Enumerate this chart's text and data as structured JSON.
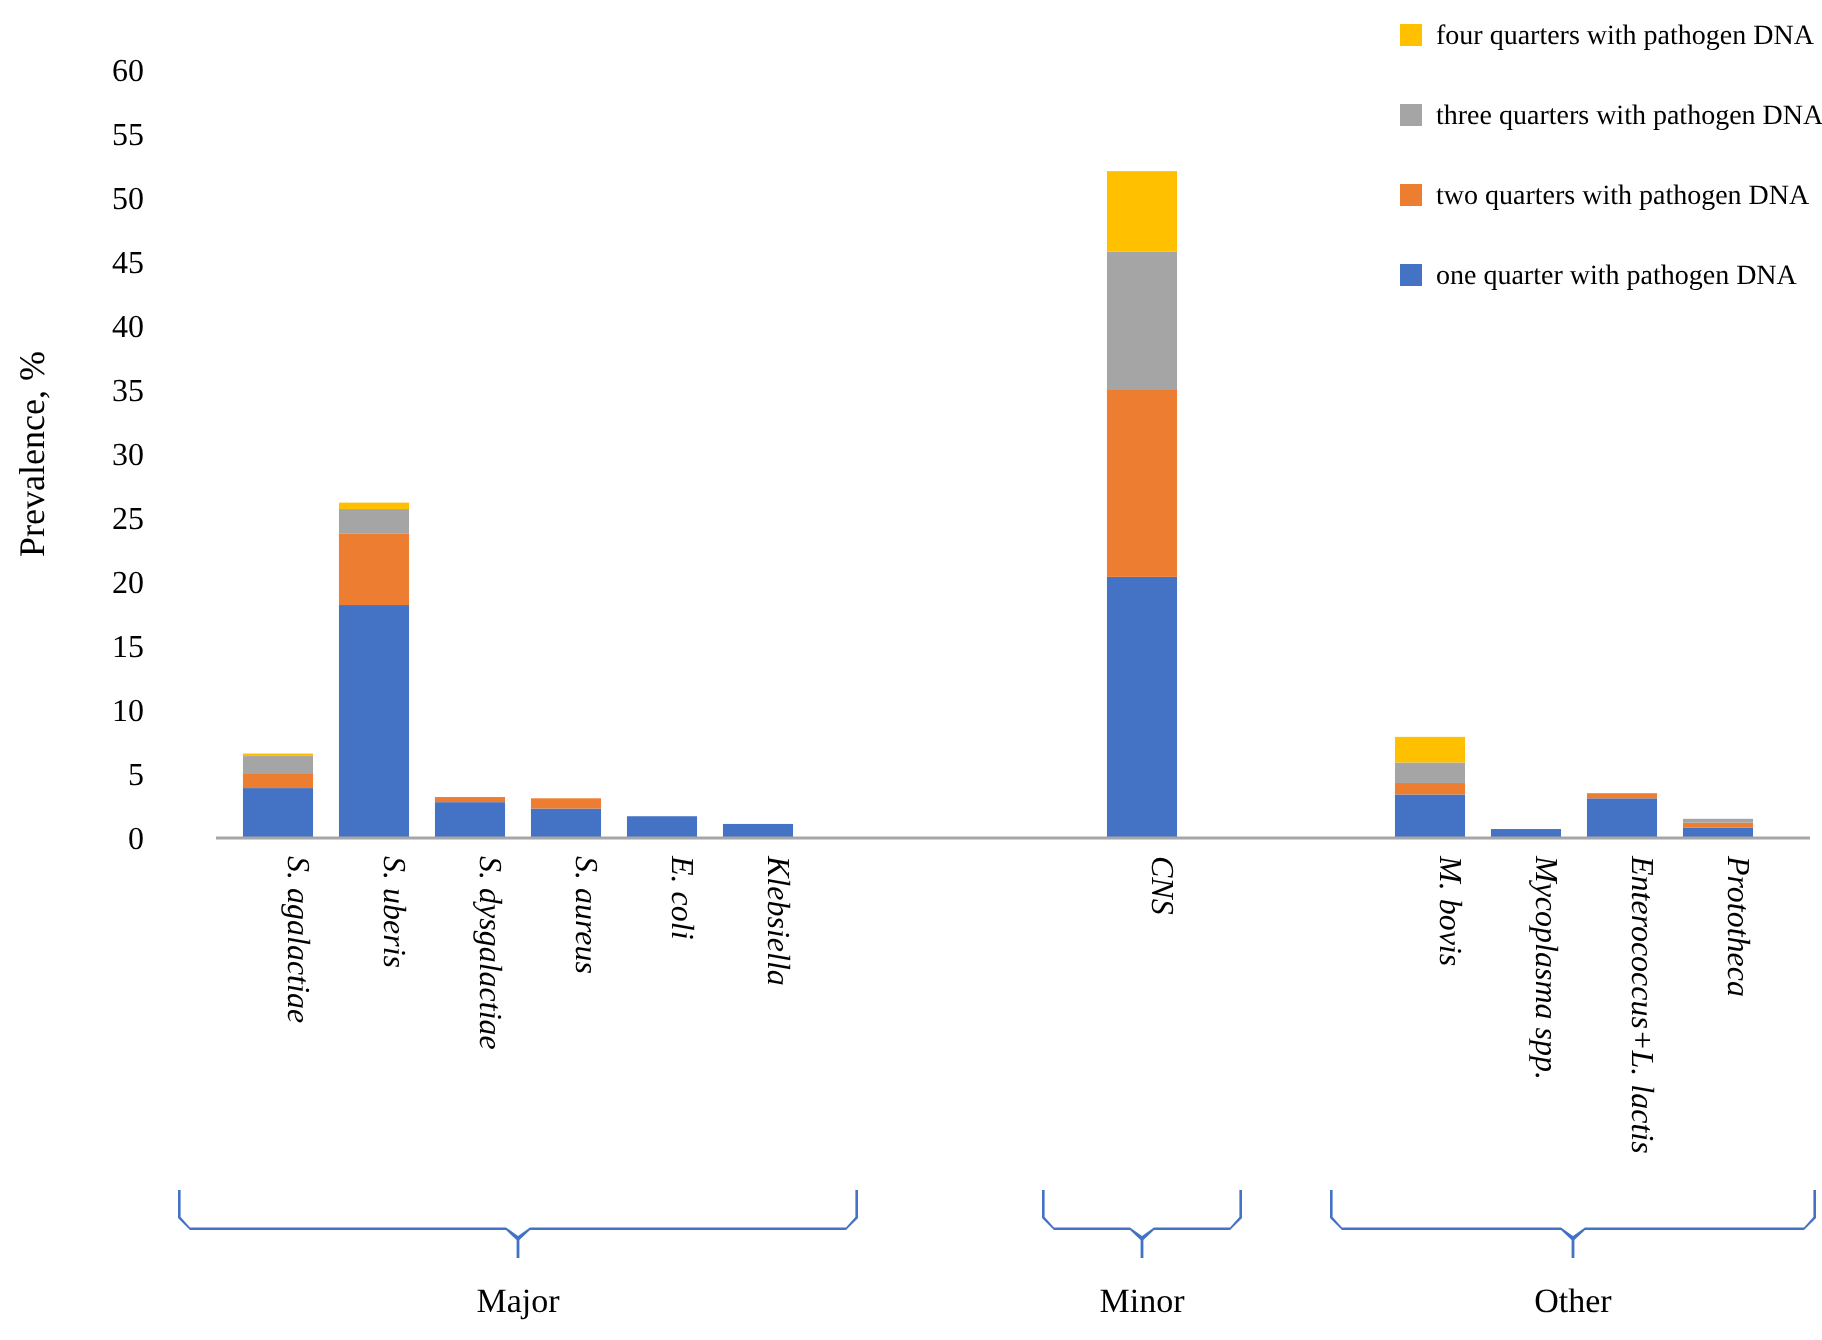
{
  "chart_data": {
    "type": "bar",
    "stacked": true,
    "ylabel": "Prevalence,  %",
    "legend": "top right",
    "ylim": [
      0,
      60
    ],
    "yticks": [
      0,
      5,
      10,
      15,
      20,
      25,
      30,
      35,
      40,
      45,
      50,
      55,
      60
    ],
    "grid": false,
    "categories": [
      "S. agalactiae",
      "S. uberis",
      "S. dysgalactiae",
      "S. aureus",
      "E. coli",
      "Klebsiella",
      null,
      null,
      null,
      "CNS",
      null,
      null,
      "M. bovis",
      "Mycoplasma spp.",
      "Enterococcus+L. lactis",
      "Prototheca"
    ],
    "series": [
      {
        "name": "one quarter with pathogen DNA",
        "color": "#4472c4",
        "values": [
          3.9,
          18.2,
          2.8,
          2.3,
          1.7,
          1.1,
          null,
          null,
          null,
          20.4,
          null,
          null,
          3.4,
          0.7,
          3.1,
          0.8
        ]
      },
      {
        "name": "two quarters with pathogen DNA",
        "color": "#ed7d31",
        "values": [
          1.1,
          5.6,
          0.4,
          0.8,
          null,
          null,
          null,
          null,
          null,
          14.6,
          null,
          null,
          0.9,
          null,
          0.4,
          0.4
        ]
      },
      {
        "name": "three quarters with pathogen DNA",
        "color": "#a5a5a5",
        "values": [
          1.4,
          1.9,
          null,
          null,
          null,
          null,
          null,
          null,
          null,
          10.8,
          null,
          null,
          1.6,
          null,
          null,
          0.3
        ]
      },
      {
        "name": "four quarters with pathogen DNA",
        "color": "#ffc000",
        "values": [
          0.2,
          0.5,
          null,
          null,
          null,
          null,
          null,
          null,
          null,
          6.3,
          null,
          null,
          2.0,
          null,
          null,
          null
        ]
      }
    ],
    "annotations": [
      "Major",
      "Minor",
      "Other"
    ]
  }
}
